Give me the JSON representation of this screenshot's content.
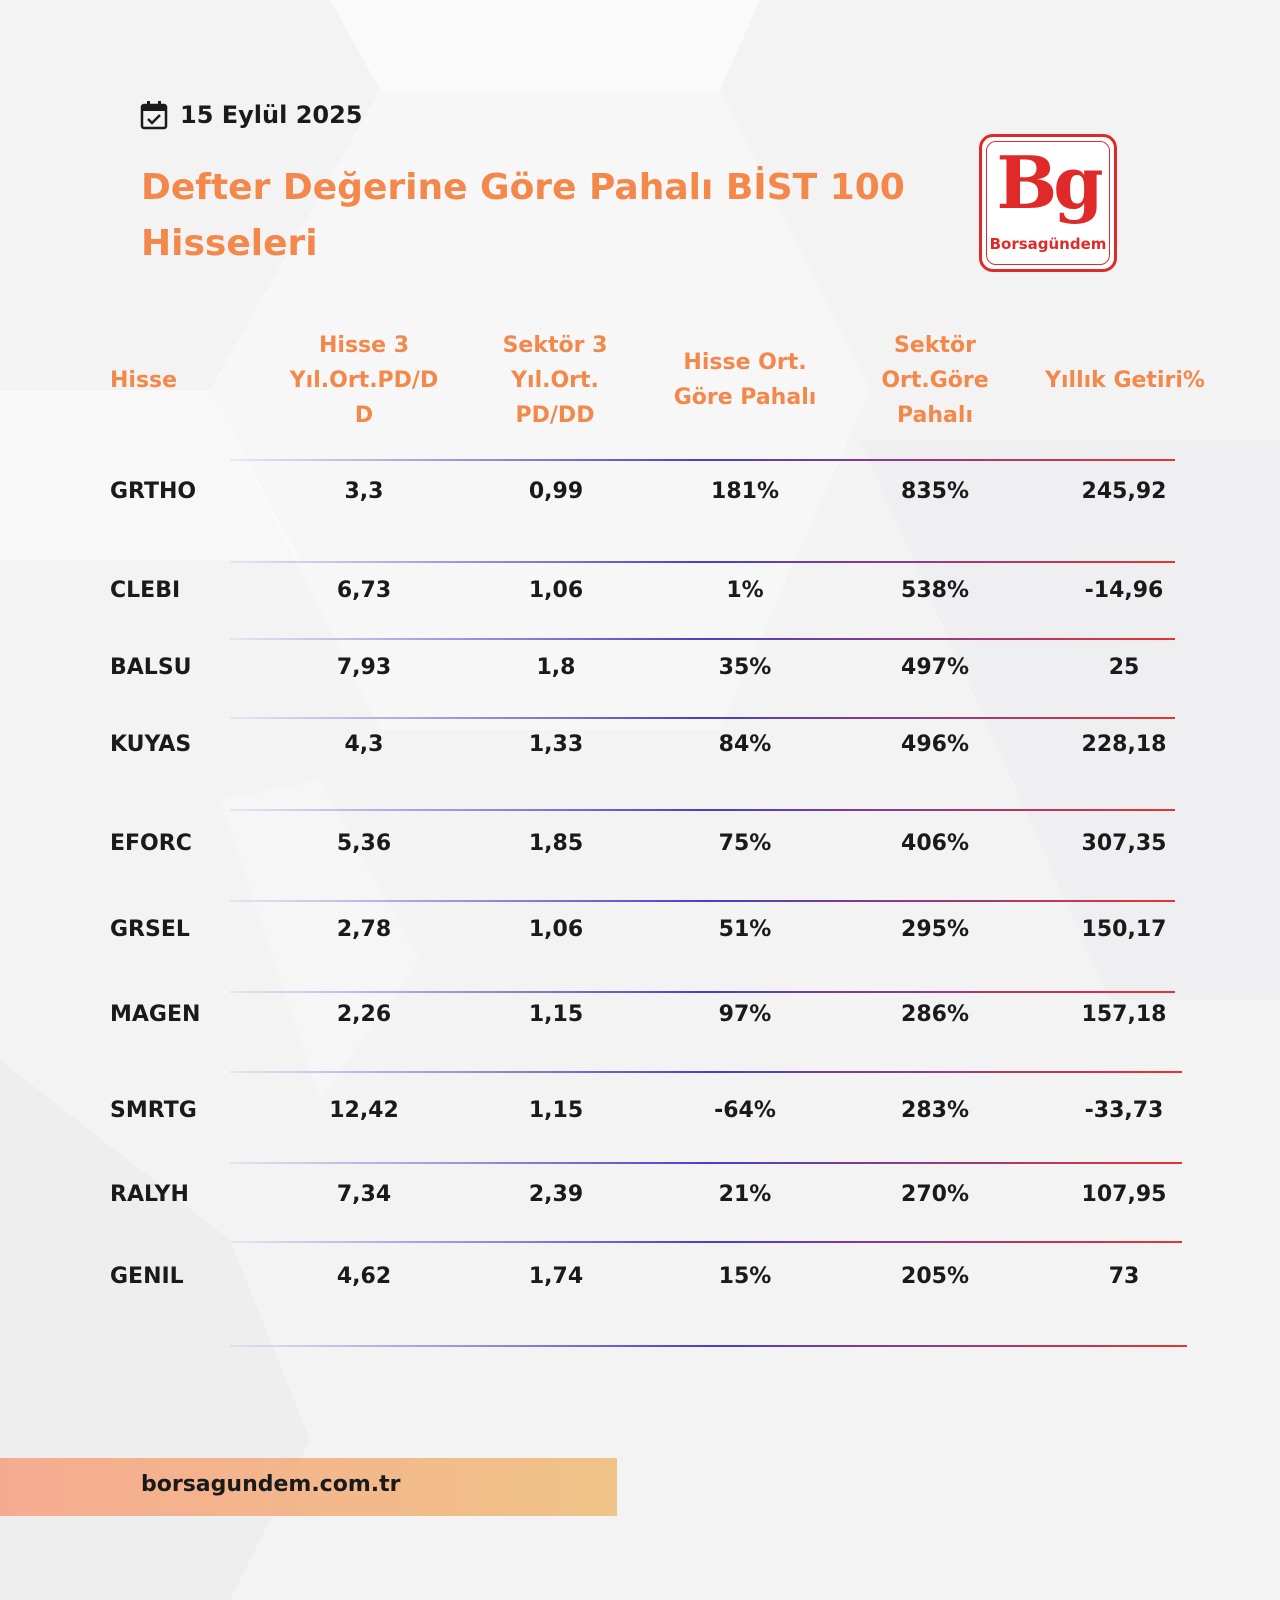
{
  "date": "15 Eylül 2025",
  "title_line1": "Defter Değerine Göre Pahalı BİST 100",
  "title_line2": "Hisseleri",
  "logo": {
    "mark": "Bg",
    "word": "Borsagündem"
  },
  "table": {
    "headers": [
      "Hisse",
      "Hisse 3 Yıl.Ort.PD/D D",
      "Sektör 3 Yıl.Ort. PD/DD",
      "Hisse Ort. Göre Pahalı",
      "Sektör Ort.Göre Pahalı",
      "Yıllık Getiri%"
    ],
    "rows": [
      [
        "GRTHO",
        "3,3",
        "0,99",
        "181%",
        "835%",
        "245,92"
      ],
      [
        "CLEBI",
        "6,73",
        "1,06",
        "1%",
        "538%",
        "-14,96"
      ],
      [
        "BALSU",
        "7,93",
        "1,8",
        "35%",
        "497%",
        "25"
      ],
      [
        "KUYAS",
        "4,3",
        "1,33",
        "84%",
        "496%",
        "228,18"
      ],
      [
        "EFORC",
        "5,36",
        "1,85",
        "75%",
        "406%",
        "307,35"
      ],
      [
        "GRSEL",
        "2,78",
        "1,06",
        "51%",
        "295%",
        "150,17"
      ],
      [
        "MAGEN",
        "2,26",
        "1,15",
        "97%",
        "286%",
        "157,18"
      ],
      [
        "SMRTG",
        "12,42",
        "1,15",
        "-64%",
        "283%",
        "-33,73"
      ],
      [
        "RALYH",
        "7,34",
        "2,39",
        "21%",
        "270%",
        "107,95"
      ],
      [
        "GENIL",
        "4,62",
        "1,74",
        "15%",
        "205%",
        "73"
      ]
    ]
  },
  "footer": {
    "url": "borsagundem.com.tr"
  },
  "colors": {
    "accent": "#f4884a",
    "brand_red": "#e02a2a",
    "text": "#1a1a1a"
  },
  "icons": {
    "date": "calendar-check-icon"
  }
}
